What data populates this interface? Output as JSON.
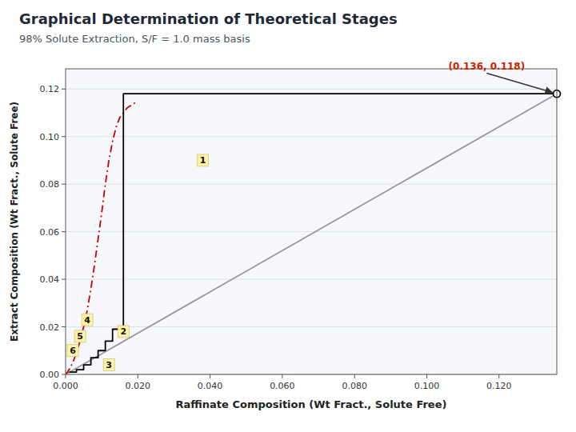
{
  "chart_data": {
    "type": "line",
    "title": "Graphical Determination of Theoretical Stages",
    "subtitle": "98% Solute Extraction, S/F = 1.0 mass basis",
    "xlabel": "Raffinate Composition (Wt Fract., Solute Free)",
    "ylabel": "Extract Composition (Wt Fract., Solute Free)",
    "xlim": [
      0.0,
      0.136
    ],
    "ylim": [
      0.0,
      0.1285
    ],
    "xticks": [
      {
        "value": 0.0,
        "label": "0.000"
      },
      {
        "value": 0.02,
        "label": "0.020"
      },
      {
        "value": 0.04,
        "label": "0.040"
      },
      {
        "value": 0.06,
        "label": "0.060"
      },
      {
        "value": 0.08,
        "label": "0.080"
      },
      {
        "value": 0.1,
        "label": "0.100"
      },
      {
        "value": 0.12,
        "label": "0.120"
      }
    ],
    "yticks": [
      {
        "value": 0.0,
        "label": "0.00"
      },
      0.02,
      0.04,
      0.06,
      0.08,
      {
        "value": 0.1,
        "label": "0.10"
      },
      0.12
    ],
    "grid": true,
    "series": [
      {
        "type": "line",
        "color": "#999999",
        "line_style": "solid",
        "x": [
          0.0,
          0.136
        ],
        "values": [
          0.0,
          0.118
        ]
      },
      {
        "type": "line",
        "color": "#cc0000",
        "line_style": "dash-dot",
        "x": [
          0.0,
          0.001,
          0.002,
          0.003,
          0.004,
          0.005,
          0.006,
          0.007,
          0.008,
          0.009,
          0.01,
          0.011,
          0.012,
          0.013,
          0.014,
          0.015,
          0.016,
          0.017,
          0.018,
          0.02
        ],
        "values": [
          0.0,
          0.002,
          0.005,
          0.009,
          0.014,
          0.02,
          0.027,
          0.036,
          0.046,
          0.057,
          0.068,
          0.08,
          0.09,
          0.098,
          0.104,
          0.108,
          0.11,
          0.112,
          0.113,
          0.115
        ]
      },
      {
        "type": "line",
        "color": "#000000",
        "line_style": "solid",
        "x": [
          0.136,
          0.016,
          0.016
        ],
        "values": [
          0.118,
          0.118,
          0.11
        ]
      },
      {
        "type": "line",
        "color": "#000000",
        "line_style": "solid",
        "x": [
          0.016,
          0.013,
          0.013,
          0.011,
          0.011,
          0.009,
          0.009,
          0.007,
          0.007,
          0.005,
          0.005,
          0.003,
          0.003,
          0.001
        ],
        "values": [
          0.019,
          0.019,
          0.014,
          0.014,
          0.01,
          0.01,
          0.007,
          0.007,
          0.004,
          0.004,
          0.002,
          0.002,
          0.001,
          0.001
        ]
      },
      {
        "type": "line",
        "color": "#000000",
        "line_style": "solid",
        "x": [
          0.016,
          0.016
        ],
        "values": [
          0.11,
          0.019
        ]
      },
      {
        "type": "scatter",
        "color": "#000000",
        "marker": "circle",
        "x": [
          0.136
        ],
        "values": [
          0.118
        ]
      }
    ],
    "annotations": [
      {
        "text": "(0.136, 0.118)",
        "x": 0.106,
        "y": 0.128,
        "point_x": 0.136,
        "point_y": 0.118,
        "color": "#cc2200"
      }
    ],
    "stage_labels": [
      {
        "text": "1",
        "x": 0.038,
        "y": 0.09
      },
      {
        "text": "2",
        "x": 0.016,
        "y": 0.018
      },
      {
        "text": "3",
        "x": 0.012,
        "y": 0.004
      },
      {
        "text": "4",
        "x": 0.006,
        "y": 0.023
      },
      {
        "text": "5",
        "x": 0.004,
        "y": 0.016
      },
      {
        "text": "6",
        "x": 0.002,
        "y": 0.01
      }
    ]
  }
}
